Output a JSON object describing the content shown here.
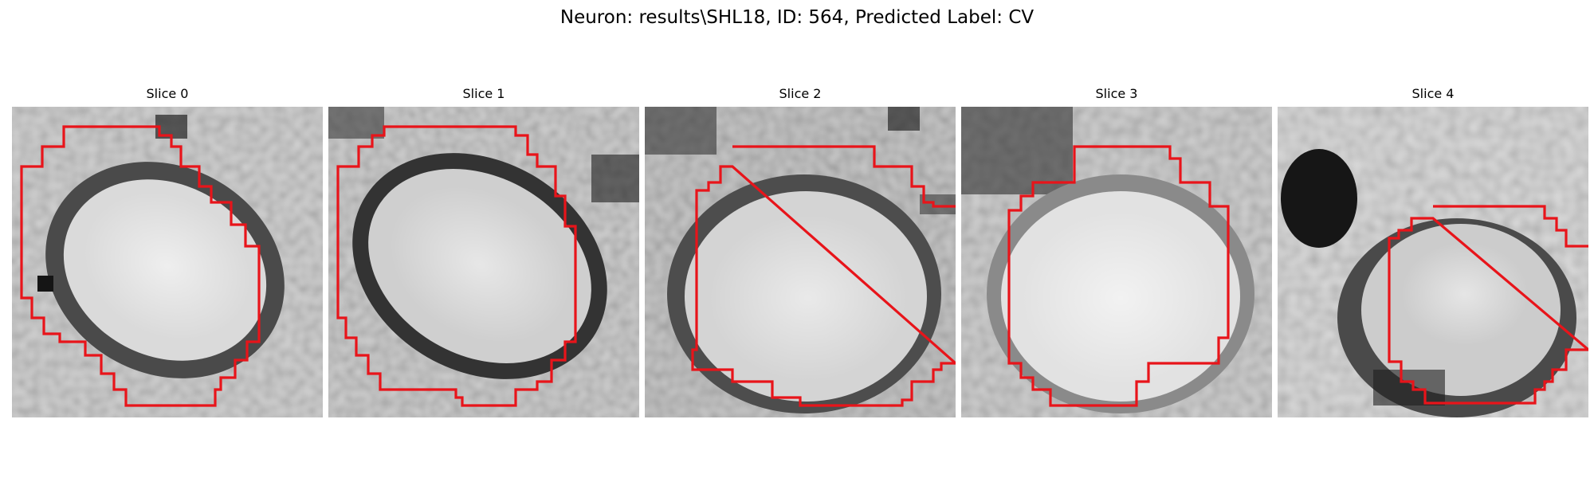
{
  "figure": {
    "title": "Neuron: results\\SHL18, ID: 564, Predicted Label: CV"
  },
  "slices": [
    {
      "title": "Slice 0"
    },
    {
      "title": "Slice 1"
    },
    {
      "title": "Slice 2"
    },
    {
      "title": "Slice 3"
    },
    {
      "title": "Slice 4"
    }
  ],
  "colors": {
    "contour": "#e8141a",
    "background": "#ffffff"
  }
}
